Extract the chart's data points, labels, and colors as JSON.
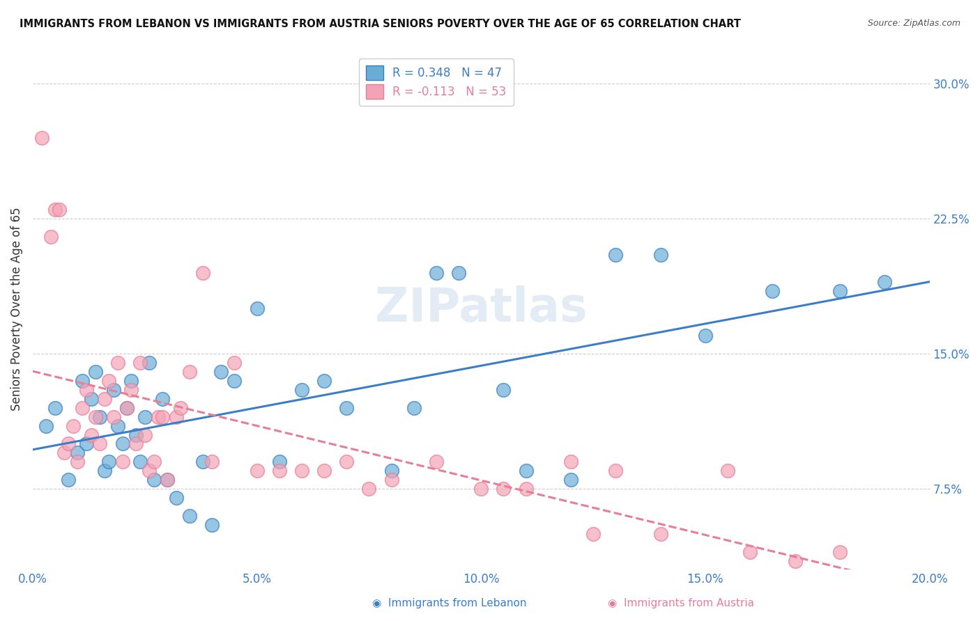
{
  "title": "IMMIGRANTS FROM LEBANON VS IMMIGRANTS FROM AUSTRIA SENIORS POVERTY OVER THE AGE OF 65 CORRELATION CHART",
  "source": "Source: ZipAtlas.com",
  "ylabel": "Seniors Poverty Over the Age of 65",
  "xlabel_ticks": [
    "0.0%",
    "5.0%",
    "10.0%",
    "15.0%",
    "20.0%"
  ],
  "xlabel_vals": [
    0.0,
    5.0,
    10.0,
    15.0,
    20.0
  ],
  "ylabel_ticks": [
    "7.5%",
    "15.0%",
    "22.5%",
    "30.0%"
  ],
  "ylabel_vals": [
    7.5,
    15.0,
    22.5,
    30.0
  ],
  "xlim": [
    0.0,
    20.0
  ],
  "ylim": [
    3.0,
    32.0
  ],
  "R_lebanon": 0.348,
  "N_lebanon": 47,
  "R_austria": -0.113,
  "N_austria": 53,
  "color_lebanon": "#6aaed6",
  "color_austria": "#f4a3b5",
  "color_lebanon_line": "#3a7dc9",
  "color_austria_line": "#e87d98",
  "legend_label_lebanon": "Immigrants from Lebanon",
  "legend_label_austria": "Immigrants from Austria",
  "watermark": "ZIPatlas",
  "lebanon_x": [
    0.3,
    0.5,
    0.8,
    1.0,
    1.1,
    1.2,
    1.3,
    1.4,
    1.5,
    1.6,
    1.7,
    1.8,
    1.9,
    2.0,
    2.1,
    2.2,
    2.3,
    2.4,
    2.5,
    2.6,
    2.7,
    2.9,
    3.0,
    3.2,
    3.5,
    3.8,
    4.0,
    4.2,
    4.5,
    5.0,
    5.5,
    6.0,
    6.5,
    7.0,
    8.0,
    8.5,
    9.0,
    9.5,
    10.5,
    11.0,
    12.0,
    13.0,
    14.0,
    15.0,
    16.5,
    18.0,
    19.0
  ],
  "lebanon_y": [
    11.0,
    12.0,
    8.0,
    9.5,
    13.5,
    10.0,
    12.5,
    14.0,
    11.5,
    8.5,
    9.0,
    13.0,
    11.0,
    10.0,
    12.0,
    13.5,
    10.5,
    9.0,
    11.5,
    14.5,
    8.0,
    12.5,
    8.0,
    7.0,
    6.0,
    9.0,
    5.5,
    14.0,
    13.5,
    17.5,
    9.0,
    13.0,
    13.5,
    12.0,
    8.5,
    12.0,
    19.5,
    19.5,
    13.0,
    8.5,
    8.0,
    20.5,
    20.5,
    16.0,
    18.5,
    18.5,
    19.0
  ],
  "austria_x": [
    0.2,
    0.4,
    0.5,
    0.6,
    0.7,
    0.8,
    0.9,
    1.0,
    1.1,
    1.2,
    1.3,
    1.4,
    1.5,
    1.6,
    1.7,
    1.8,
    1.9,
    2.0,
    2.1,
    2.2,
    2.3,
    2.4,
    2.5,
    2.6,
    2.7,
    2.8,
    2.9,
    3.0,
    3.2,
    3.3,
    3.5,
    3.8,
    4.0,
    4.5,
    5.0,
    5.5,
    6.0,
    6.5,
    7.0,
    7.5,
    8.0,
    9.0,
    10.0,
    10.5,
    11.0,
    12.0,
    12.5,
    13.0,
    14.0,
    15.5,
    16.0,
    17.0,
    18.0
  ],
  "austria_y": [
    27.0,
    21.5,
    23.0,
    23.0,
    9.5,
    10.0,
    11.0,
    9.0,
    12.0,
    13.0,
    10.5,
    11.5,
    10.0,
    12.5,
    13.5,
    11.5,
    14.5,
    9.0,
    12.0,
    13.0,
    10.0,
    14.5,
    10.5,
    8.5,
    9.0,
    11.5,
    11.5,
    8.0,
    11.5,
    12.0,
    14.0,
    19.5,
    9.0,
    14.5,
    8.5,
    8.5,
    8.5,
    8.5,
    9.0,
    7.5,
    8.0,
    9.0,
    7.5,
    7.5,
    7.5,
    9.0,
    5.0,
    8.5,
    5.0,
    8.5,
    4.0,
    3.5,
    4.0
  ]
}
